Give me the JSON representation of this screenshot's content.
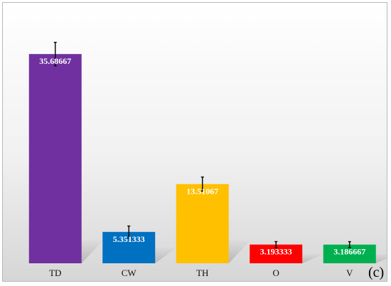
{
  "chart_data": {
    "type": "bar",
    "categories": [
      "TD",
      "CW",
      "TH",
      "O",
      "V"
    ],
    "values": [
      35.68667,
      5.351333,
      13.51067,
      3.193333,
      3.186667
    ],
    "value_labels": [
      "35.68667",
      "5.351333",
      "13.51067",
      "3.193333",
      "3.186667"
    ],
    "error": [
      2.0,
      1.0,
      1.2,
      0.5,
      0.5
    ],
    "colors": [
      "#7030a0",
      "#0070c0",
      "#ffc000",
      "#ff0000",
      "#00b050"
    ],
    "title": "",
    "xlabel": "",
    "ylabel": "",
    "ylim": [
      0,
      42
    ],
    "grid": false,
    "legend": "none",
    "panel_label": "(c)"
  }
}
